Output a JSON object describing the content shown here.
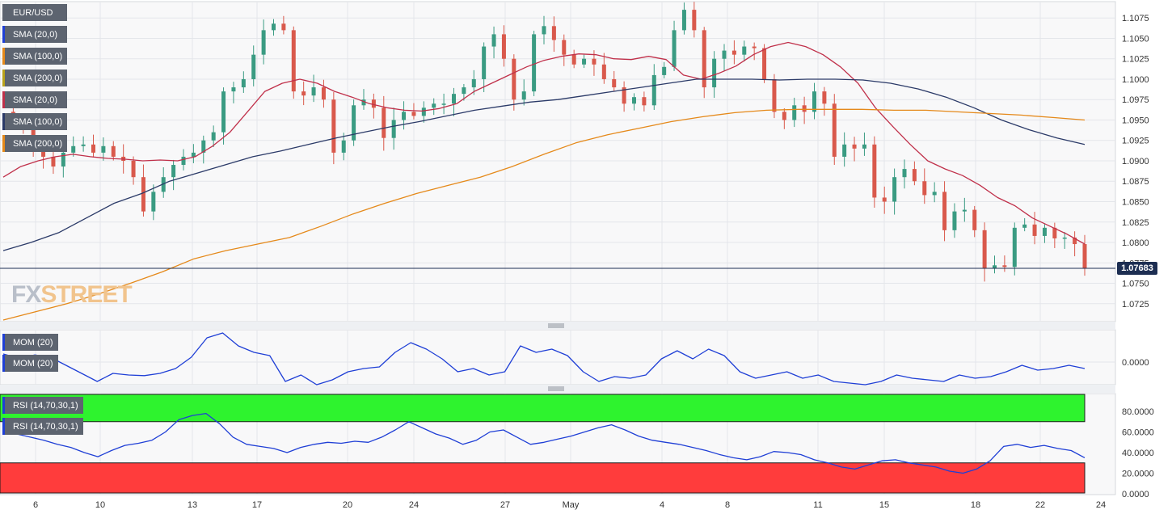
{
  "symbol_label": "EUR/USD",
  "last_price_label": "1.07683",
  "watermark": {
    "part1": "FX",
    "part2": "STREET"
  },
  "colors": {
    "bull": "#3a9b82",
    "bear": "#d9594c",
    "sma20": "#c0304a",
    "sma100": "#2b3a68",
    "sma200": "#e5891a",
    "mom": "#1f3fd6",
    "rsi": "#1f3fd6",
    "rsi_overbought_zone": "#2ef32e",
    "rsi_oversold_zone": "#ff3c3c"
  },
  "legend_main": [
    {
      "label": "EUR/USD",
      "color": "#5d6470"
    },
    {
      "label": "SMA (20,0)",
      "color": "#1f3fd6"
    },
    {
      "label": "SMA (100,0)",
      "color": "#e5891a"
    },
    {
      "label": "SMA (200,0)",
      "color": "#b9a21a"
    },
    {
      "label": "SMA (20,0)",
      "color": "#c0304a"
    },
    {
      "label": "SMA (100,0)",
      "color": "#2b3a68"
    },
    {
      "label": "SMA (200,0)",
      "color": "#e5891a"
    }
  ],
  "legend_mom": [
    {
      "label": "MOM (20)"
    },
    {
      "label": "MOM (20)"
    }
  ],
  "legend_rsi": [
    {
      "label": "RSI (14,70,30,1)"
    },
    {
      "label": "RSI (14,70,30,1)"
    }
  ],
  "chart_data": {
    "type": "candlestick",
    "title": "EUR/USD",
    "x_tick_labels": [
      "6",
      "10",
      "13",
      "17",
      "20",
      "24",
      "27",
      "May",
      "4",
      "8",
      "11",
      "15",
      "18",
      "22",
      "24"
    ],
    "price_axis": {
      "ylim": [
        1.0703,
        1.1095
      ],
      "ticks": [
        "1.0725",
        "1.0750",
        "1.0775",
        "1.0800",
        "1.0825",
        "1.0850",
        "1.0875",
        "1.0900",
        "1.0925",
        "1.0950",
        "1.0975",
        "1.1000",
        "1.1025",
        "1.1050",
        "1.1075"
      ]
    },
    "last_price": 1.07683,
    "price_path": [
      1.096,
      1.0952,
      1.094,
      1.0915,
      1.0905,
      1.0893,
      1.091,
      1.0918,
      1.092,
      1.091,
      1.0918,
      1.0905,
      1.09,
      1.088,
      1.0838,
      1.0862,
      1.088,
      1.0895,
      1.0905,
      1.091,
      1.0925,
      1.0935,
      1.0985,
      1.099,
      1.1,
      1.103,
      1.106,
      1.1068,
      1.106,
      1.0985,
      1.098,
      1.099,
      1.0975,
      1.091,
      1.0925,
      1.0968,
      1.0975,
      1.0965,
      1.0928,
      1.095,
      1.096,
      1.0955,
      1.0965,
      1.097,
      1.097,
      1.0982,
      1.099,
      1.1,
      1.104,
      1.1055,
      1.1025,
      1.0975,
      1.0985,
      1.1055,
      1.1065,
      1.1048,
      1.103,
      1.1018,
      1.1025,
      1.1018,
      1.1,
      1.099,
      1.097,
      1.0978,
      1.0968,
      1.1005,
      1.1015,
      1.106,
      1.1085,
      1.106,
      1.099,
      1.1025,
      1.1035,
      1.103,
      1.104,
      1.1038,
      1.1,
      1.096,
      1.095,
      1.0968,
      1.096,
      1.0985,
      1.097,
      1.0905,
      1.092,
      1.0915,
      1.092,
      1.0855,
      1.085,
      1.088,
      1.089,
      1.0875,
      1.0858,
      1.0862,
      1.0815,
      1.0838,
      1.084,
      1.0815,
      1.0768,
      1.0772,
      1.077,
      1.0818,
      1.0822,
      1.0808,
      1.0818,
      1.0805,
      1.0806,
      1.0798,
      1.0768
    ],
    "series": [
      {
        "name": "SMA (20,0)",
        "key": "sma20",
        "values": [
          1.088,
          1.0893,
          1.09,
          1.0905,
          1.0908,
          1.0905,
          1.0903,
          1.0902,
          1.09,
          1.0901,
          1.09,
          1.0905,
          1.0918,
          1.0935,
          1.096,
          1.0985,
          1.0995,
          1.1,
          1.0995,
          1.0985,
          1.0978,
          1.097,
          1.0965,
          1.0962,
          1.0961,
          1.0964,
          1.097,
          1.0985,
          1.0995,
          1.1005,
          1.1015,
          1.1023,
          1.1028,
          1.1031,
          1.103,
          1.1025,
          1.1024,
          1.1028,
          1.1024,
          1.1005,
          1.1,
          1.1007,
          1.1016,
          1.103,
          1.104,
          1.1045,
          1.104,
          1.103,
          1.1015,
          1.0995,
          1.0965,
          1.0942,
          1.092,
          1.09,
          1.089,
          1.0882,
          1.087,
          1.0855,
          1.0845,
          1.083,
          1.082,
          1.081,
          1.0798
        ]
      },
      {
        "name": "SMA (100,0)",
        "key": "sma100",
        "values": [
          1.079,
          1.08,
          1.0812,
          1.083,
          1.0848,
          1.086,
          1.0875,
          1.0885,
          1.0895,
          1.0905,
          1.0912,
          1.092,
          1.0928,
          1.0935,
          1.0942,
          1.0948,
          1.0955,
          1.0962,
          1.0967,
          1.0972,
          1.0975,
          1.098,
          1.0985,
          1.099,
          1.0995,
          1.1,
          1.1,
          1.1,
          1.0999,
          1.1,
          1.1,
          1.0999,
          1.0995,
          1.0988,
          1.0978,
          1.0965,
          1.095,
          1.0938,
          1.0928,
          1.092
        ]
      },
      {
        "name": "SMA (200,0)",
        "key": "sma200",
        "values": [
          1.0705,
          1.0715,
          1.0725,
          1.0737,
          1.075,
          1.0764,
          1.078,
          1.079,
          1.0798,
          1.0806,
          1.082,
          1.0835,
          1.0848,
          1.086,
          1.087,
          1.088,
          1.0893,
          1.0908,
          1.0922,
          1.0932,
          1.094,
          1.0948,
          1.0954,
          1.0959,
          1.0962,
          1.0963,
          1.0963,
          1.0963,
          1.0962,
          1.0962,
          1.096,
          1.0958,
          1.0956,
          1.0953,
          1.095
        ]
      }
    ],
    "mom_axis": {
      "ticks": [
        "0.0000"
      ]
    },
    "mom_values": [
      0.0025,
      0.0012,
      0.0022,
      0.0015,
      -0.001,
      -0.0035,
      -0.006,
      -0.0035,
      -0.004,
      -0.0042,
      -0.0035,
      -0.002,
      0.0015,
      0.0075,
      0.009,
      0.005,
      0.003,
      0.002,
      -0.006,
      -0.004,
      -0.007,
      -0.0055,
      -0.003,
      -0.002,
      -0.0015,
      0.003,
      0.006,
      0.004,
      0.001,
      -0.003,
      -0.002,
      -0.004,
      -0.003,
      0.005,
      0.003,
      0.004,
      0.002,
      -0.003,
      -0.006,
      -0.0045,
      -0.005,
      -0.004,
      0.001,
      0.0035,
      0.001,
      0.004,
      0.002,
      -0.003,
      -0.005,
      -0.004,
      -0.003,
      -0.005,
      -0.004,
      -0.006,
      -0.0065,
      -0.007,
      -0.006,
      -0.004,
      -0.005,
      -0.0055,
      -0.006,
      -0.004,
      -0.005,
      -0.0045,
      -0.003,
      -0.001,
      -0.0025,
      -0.002,
      -0.001,
      -0.002
    ],
    "rsi_axis": {
      "ylim": [
        0,
        100
      ],
      "ticks": [
        "80.0000",
        "60.0000",
        "40.0000",
        "20.0000",
        "0.0000"
      ],
      "overbought": 70,
      "oversold": 30
    },
    "rsi_values": [
      60,
      58,
      55,
      52,
      48,
      45,
      40,
      36,
      42,
      47,
      49,
      52,
      60,
      72,
      76,
      78,
      68,
      55,
      48,
      46,
      44,
      40,
      45,
      48,
      50,
      49,
      51,
      50,
      55,
      62,
      70,
      64,
      58,
      54,
      48,
      52,
      60,
      62,
      55,
      48,
      50,
      53,
      56,
      60,
      64,
      67,
      62,
      56,
      52,
      50,
      48,
      45,
      42,
      38,
      35,
      33,
      36,
      41,
      40,
      38,
      33,
      30,
      26,
      24,
      28,
      32,
      33,
      30,
      28,
      26,
      22,
      20,
      24,
      32,
      46,
      48,
      45,
      47,
      44,
      42,
      35
    ],
    "grid": true
  }
}
